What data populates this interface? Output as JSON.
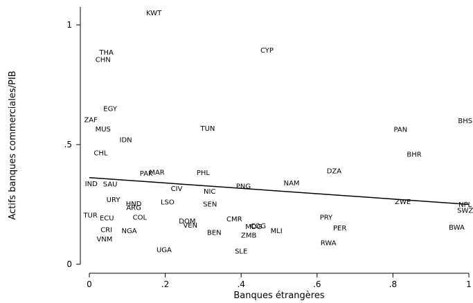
{
  "chart_data": {
    "type": "scatter",
    "xlabel": "Banques étrangères",
    "ylabel": "Actifs banques commerciales/PIB",
    "xlim": [
      0,
      1
    ],
    "ylim": [
      0,
      1
    ],
    "x_ticks": [
      {
        "value": 0,
        "label": "0"
      },
      {
        "value": 0.2,
        "label": ".2"
      },
      {
        "value": 0.4,
        "label": ".4"
      },
      {
        "value": 0.6,
        "label": ".6"
      },
      {
        "value": 0.8,
        "label": ".8"
      },
      {
        "value": 1,
        "label": "1"
      }
    ],
    "y_ticks": [
      {
        "value": 0,
        "label": "0"
      },
      {
        "value": 0.5,
        "label": ".5"
      },
      {
        "value": 1,
        "label": "1"
      }
    ],
    "grid": false,
    "fit_line": {
      "x": [
        0,
        1
      ],
      "y": [
        0.362,
        0.25
      ]
    },
    "points": [
      {
        "label": "KWT",
        "x": 0.17,
        "y": 1.05
      },
      {
        "label": "THA",
        "x": 0.045,
        "y": 0.886
      },
      {
        "label": "CHN",
        "x": 0.036,
        "y": 0.855
      },
      {
        "label": "CYP",
        "x": 0.468,
        "y": 0.895
      },
      {
        "label": "EGY",
        "x": 0.055,
        "y": 0.65
      },
      {
        "label": "ZAF",
        "x": 0.004,
        "y": 0.604
      },
      {
        "label": "MUS",
        "x": 0.036,
        "y": 0.565
      },
      {
        "label": "TUN",
        "x": 0.312,
        "y": 0.568
      },
      {
        "label": "IDN",
        "x": 0.096,
        "y": 0.52
      },
      {
        "label": "CHL",
        "x": 0.03,
        "y": 0.465
      },
      {
        "label": "PAN",
        "x": 0.82,
        "y": 0.564
      },
      {
        "label": "BHS",
        "x": 1.0,
        "y": 0.6
      },
      {
        "label": "BHR",
        "x": 0.856,
        "y": 0.46
      },
      {
        "label": "PAK",
        "x": 0.15,
        "y": 0.38
      },
      {
        "label": "MAR",
        "x": 0.178,
        "y": 0.384
      },
      {
        "label": "PHL",
        "x": 0.3,
        "y": 0.383
      },
      {
        "label": "DZA",
        "x": 0.645,
        "y": 0.39
      },
      {
        "label": "IND",
        "x": 0.005,
        "y": 0.337
      },
      {
        "label": "SAU",
        "x": 0.055,
        "y": 0.335
      },
      {
        "label": "PNG",
        "x": 0.406,
        "y": 0.327
      },
      {
        "label": "NAM",
        "x": 0.533,
        "y": 0.34
      },
      {
        "label": "CIV",
        "x": 0.23,
        "y": 0.317
      },
      {
        "label": "NIC",
        "x": 0.317,
        "y": 0.305
      },
      {
        "label": "URY",
        "x": 0.063,
        "y": 0.27
      },
      {
        "label": "HND",
        "x": 0.117,
        "y": 0.253
      },
      {
        "label": "ARG",
        "x": 0.117,
        "y": 0.237
      },
      {
        "label": "LSO",
        "x": 0.206,
        "y": 0.26
      },
      {
        "label": "SEN",
        "x": 0.318,
        "y": 0.252
      },
      {
        "label": "ZWE",
        "x": 0.826,
        "y": 0.262
      },
      {
        "label": "NPL",
        "x": 1.0,
        "y": 0.25
      },
      {
        "label": "SWZ",
        "x": 1.0,
        "y": 0.225
      },
      {
        "label": "TUR",
        "x": 0.003,
        "y": 0.205
      },
      {
        "label": "ECU",
        "x": 0.046,
        "y": 0.194
      },
      {
        "label": "COL",
        "x": 0.133,
        "y": 0.197
      },
      {
        "label": "DOM",
        "x": 0.258,
        "y": 0.18
      },
      {
        "label": "VEN",
        "x": 0.266,
        "y": 0.163
      },
      {
        "label": "CMR",
        "x": 0.382,
        "y": 0.19
      },
      {
        "label": "PRY",
        "x": 0.624,
        "y": 0.197
      },
      {
        "label": "CRI",
        "x": 0.045,
        "y": 0.145
      },
      {
        "label": "NGA",
        "x": 0.105,
        "y": 0.14
      },
      {
        "label": "BEN",
        "x": 0.329,
        "y": 0.133
      },
      {
        "label": "MDG",
        "x": 0.433,
        "y": 0.158
      },
      {
        "label": "COG",
        "x": 0.445,
        "y": 0.16
      },
      {
        "label": "ZMB",
        "x": 0.42,
        "y": 0.122
      },
      {
        "label": "MLI",
        "x": 0.493,
        "y": 0.14
      },
      {
        "label": "PER",
        "x": 0.66,
        "y": 0.152
      },
      {
        "label": "BWA",
        "x": 0.968,
        "y": 0.155
      },
      {
        "label": "VNM",
        "x": 0.04,
        "y": 0.105
      },
      {
        "label": "RWA",
        "x": 0.63,
        "y": 0.09
      },
      {
        "label": "UGA",
        "x": 0.197,
        "y": 0.06
      },
      {
        "label": "SLE",
        "x": 0.4,
        "y": 0.055
      }
    ]
  }
}
